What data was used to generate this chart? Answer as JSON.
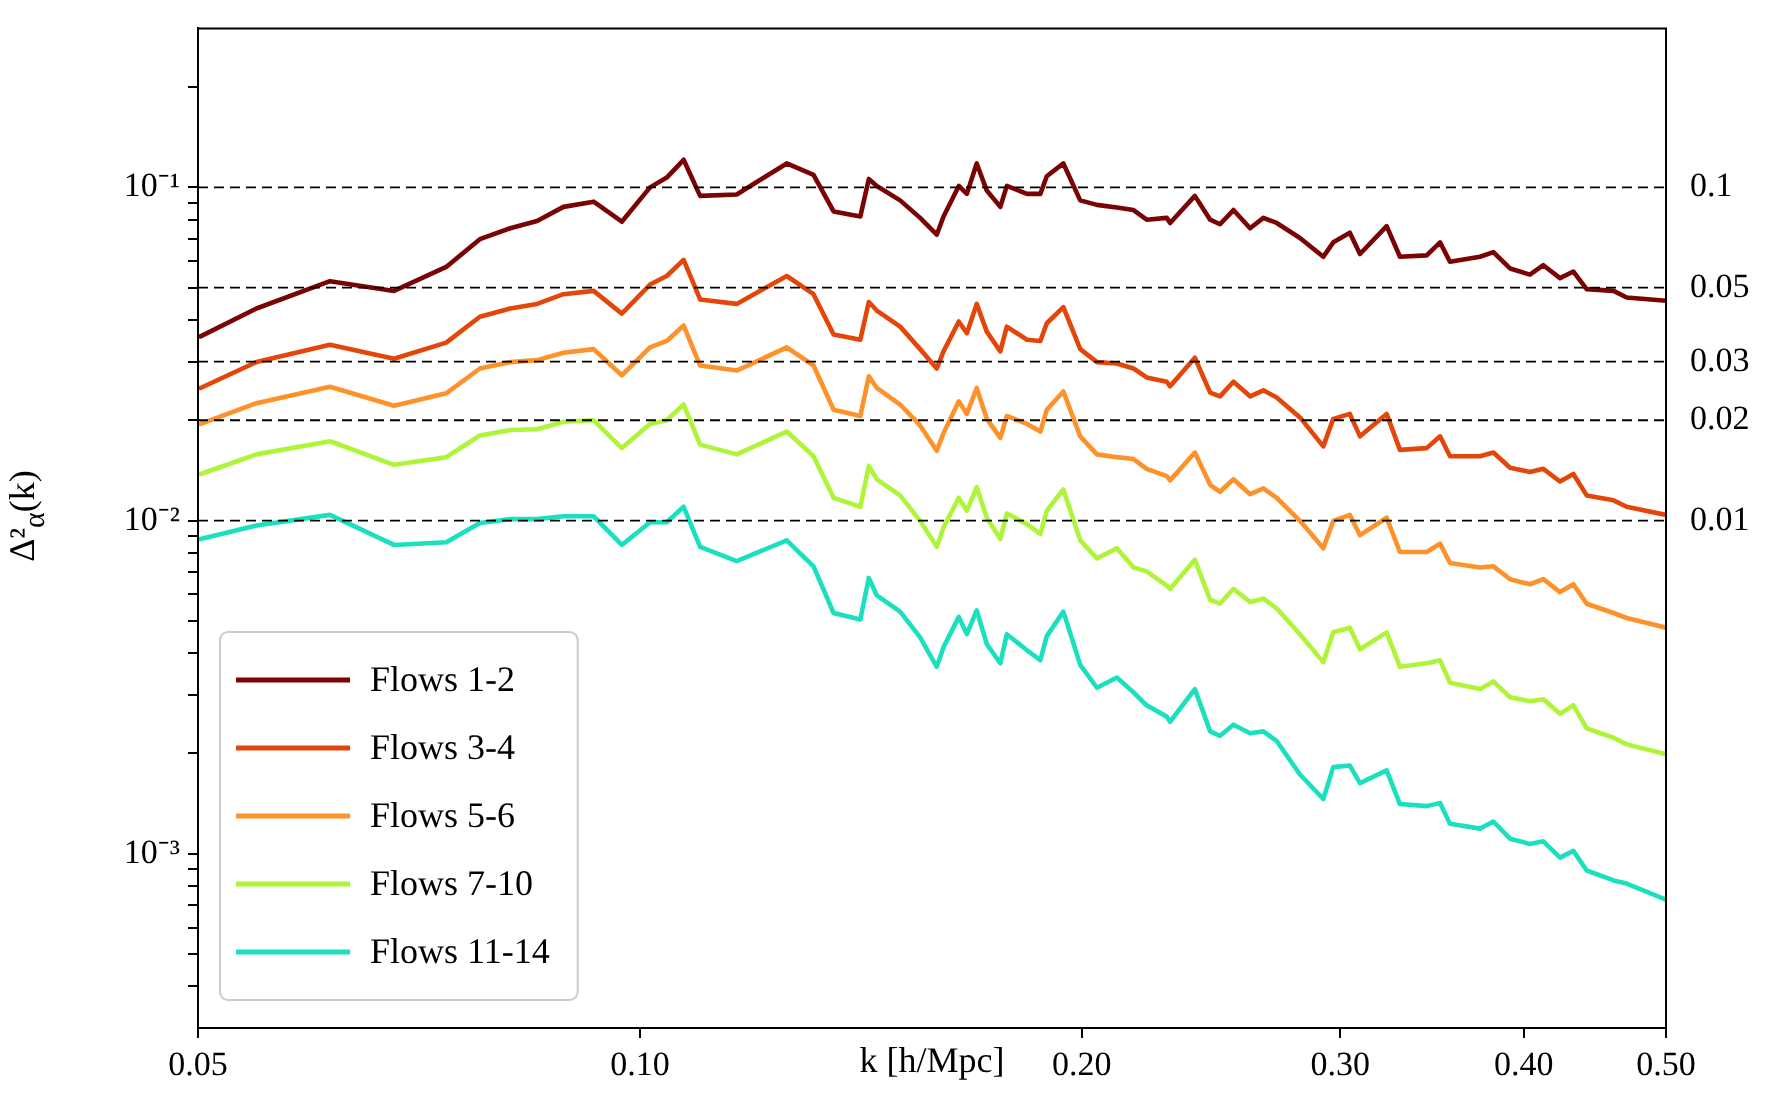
{
  "chart_data": {
    "type": "line",
    "xlabel": "k [h/Mpc]",
    "ylabel": "Δ²$_{α}$(k)",
    "log": "xy",
    "legend": "bottom left",
    "marker": "none",
    "line_style": "solid",
    "xlim": [
      0.05,
      0.5
    ],
    "xticks": [
      0.05,
      {
        "value": 0.1,
        "label": "0.10"
      },
      {
        "value": 0.2,
        "label": "0.20"
      },
      {
        "value": 0.3,
        "label": "0.30"
      },
      {
        "value": 0.4,
        "label": "0.40"
      },
      {
        "value": 0.5,
        "label": "0.50"
      }
    ],
    "ylim": [
      0.0003,
      0.3
    ],
    "yticks": [
      {
        "value": 0.0004,
        "label": null
      },
      {
        "value": 0.0005,
        "label": null
      },
      {
        "value": 0.0006,
        "label": null
      },
      {
        "value": 0.0007,
        "label": null
      },
      {
        "value": 0.0008,
        "label": null
      },
      {
        "value": 0.0009,
        "label": null
      },
      {
        "value": 0.001,
        "label": "10⁻³"
      },
      {
        "value": 0.002,
        "label": null
      },
      {
        "value": 0.003,
        "label": null
      },
      {
        "value": 0.004,
        "label": null
      },
      {
        "value": 0.005,
        "label": null
      },
      {
        "value": 0.006,
        "label": null
      },
      {
        "value": 0.007,
        "label": null
      },
      {
        "value": 0.008,
        "label": null
      },
      {
        "value": 0.009,
        "label": null
      },
      {
        "value": 0.01,
        "label": "10⁻²"
      },
      {
        "value": 0.02,
        "label": null
      },
      {
        "value": 0.03,
        "label": null
      },
      {
        "value": 0.04,
        "label": null
      },
      {
        "value": 0.05,
        "label": null
      },
      {
        "value": 0.06,
        "label": null
      },
      {
        "value": 0.07,
        "label": null
      },
      {
        "value": 0.08,
        "label": null
      },
      {
        "value": 0.09,
        "label": null
      },
      {
        "value": 0.1,
        "label": "10⁻¹"
      },
      {
        "value": 0.2,
        "label": null
      }
    ],
    "ref_lines": [
      {
        "axis": "y",
        "value": 0.1,
        "label": "0.1",
        "color": "#000000",
        "line_style": "dashed"
      },
      {
        "axis": "y",
        "value": 0.05,
        "label": "0.05",
        "color": "#000000",
        "line_style": "dashed"
      },
      {
        "axis": "y",
        "value": 0.03,
        "label": "0.03",
        "color": "#000000",
        "line_style": "dashed"
      },
      {
        "axis": "y",
        "value": 0.02,
        "label": "0.02",
        "color": "#000000",
        "line_style": "dashed"
      },
      {
        "axis": "y",
        "value": 0.01,
        "label": "0.01",
        "color": "#000000",
        "line_style": "dashed"
      }
    ],
    "x": [
      0.0502,
      0.0548,
      0.0615,
      0.068,
      0.0738,
      0.0778,
      0.0816,
      0.0851,
      0.0887,
      0.093,
      0.0972,
      0.1016,
      0.1043,
      0.1071,
      0.1099,
      0.1164,
      0.1259,
      0.1313,
      0.1355,
      0.1413,
      0.1432,
      0.145,
      0.1504,
      0.1552,
      0.1593,
      0.161,
      0.1649,
      0.167,
      0.1696,
      0.1723,
      0.176,
      0.1778,
      0.1835,
      0.1874,
      0.1893,
      0.1943,
      0.1995,
      0.2048,
      0.2113,
      0.2169,
      0.2214,
      0.2285,
      0.2297,
      0.2388,
      0.2446,
      0.2484,
      0.2537,
      0.2604,
      0.2659,
      0.2715,
      0.2816,
      0.2921,
      0.2967,
      0.3045,
      0.3094,
      0.3226,
      0.3294,
      0.3435,
      0.3508,
      0.3563,
      0.3735,
      0.3814,
      0.3915,
      0.4039,
      0.4125,
      0.4234,
      0.4324,
      0.4415,
      0.4605,
      0.4701,
      0.5
    ],
    "series": [
      {
        "name": "Flows 1-2",
        "color": "#7a0403",
        "values": [
          0.0357,
          0.0433,
          0.0523,
          0.0489,
          0.0577,
          0.0699,
          0.0754,
          0.0793,
          0.0874,
          0.0906,
          0.0789,
          0.1,
          0.107,
          0.121,
          0.0943,
          0.0952,
          0.118,
          0.109,
          0.0847,
          0.0818,
          0.106,
          0.101,
          0.0914,
          0.081,
          0.0721,
          0.0818,
          0.101,
          0.0956,
          0.118,
          0.0978,
          0.0874,
          0.101,
          0.0956,
          0.0956,
          0.108,
          0.118,
          0.0914,
          0.0886,
          0.087,
          0.0855,
          0.08,
          0.081,
          0.0782,
          0.0943,
          0.08,
          0.0775,
          0.0855,
          0.0754,
          0.081,
          0.0782,
          0.0705,
          0.0619,
          0.0684,
          0.0731,
          0.0631,
          0.0765,
          0.0619,
          0.0625,
          0.0684,
          0.0598,
          0.0619,
          0.0639,
          0.0571,
          0.0547,
          0.0584,
          0.0534,
          0.0559,
          0.0495,
          0.0489,
          0.0467,
          0.0457
        ]
      },
      {
        "name": "Flows 3-4",
        "color": "#e4460a",
        "values": [
          0.025,
          0.0299,
          0.0337,
          0.0306,
          0.0342,
          0.0409,
          0.0433,
          0.0447,
          0.0478,
          0.0489,
          0.0418,
          0.0511,
          0.0542,
          0.0606,
          0.0461,
          0.0447,
          0.0542,
          0.0478,
          0.0362,
          0.0349,
          0.0453,
          0.0427,
          0.0382,
          0.0327,
          0.0286,
          0.0322,
          0.0396,
          0.0365,
          0.0447,
          0.0369,
          0.0322,
          0.0382,
          0.0349,
          0.0346,
          0.0391,
          0.0437,
          0.0327,
          0.0299,
          0.0296,
          0.0286,
          0.0269,
          0.0261,
          0.0253,
          0.0308,
          0.0242,
          0.0236,
          0.0261,
          0.0236,
          0.0246,
          0.0234,
          0.0204,
          0.0167,
          0.0202,
          0.0209,
          0.0179,
          0.0209,
          0.0163,
          0.0165,
          0.0179,
          0.0156,
          0.0156,
          0.016,
          0.0144,
          0.014,
          0.0143,
          0.0131,
          0.0138,
          0.0119,
          0.0115,
          0.011,
          0.0104
        ]
      },
      {
        "name": "Flows 5-6",
        "color": "#fe922a",
        "values": [
          0.0195,
          0.0225,
          0.0252,
          0.0221,
          0.0241,
          0.0286,
          0.0299,
          0.0303,
          0.0319,
          0.0327,
          0.0273,
          0.0331,
          0.0346,
          0.0385,
          0.0292,
          0.0282,
          0.0331,
          0.0292,
          0.0215,
          0.0206,
          0.0271,
          0.025,
          0.0223,
          0.0193,
          0.0162,
          0.0183,
          0.0228,
          0.0209,
          0.025,
          0.0202,
          0.0177,
          0.0206,
          0.0195,
          0.0185,
          0.0215,
          0.0244,
          0.0179,
          0.0158,
          0.0155,
          0.0153,
          0.0143,
          0.0136,
          0.0132,
          0.016,
          0.0128,
          0.0122,
          0.0133,
          0.012,
          0.0125,
          0.0117,
          0.00998,
          0.00826,
          0.00998,
          0.0104,
          0.00904,
          0.0102,
          0.00805,
          0.00805,
          0.00853,
          0.00746,
          0.00723,
          0.00729,
          0.00667,
          0.00644,
          0.00667,
          0.0061,
          0.00644,
          0.00563,
          0.00528,
          0.0051,
          0.00477
        ]
      },
      {
        "name": "Flows 7-10",
        "color": "#aef539",
        "values": [
          0.0138,
          0.0158,
          0.0173,
          0.0147,
          0.0155,
          0.018,
          0.0187,
          0.0188,
          0.0198,
          0.02,
          0.0165,
          0.0195,
          0.02,
          0.0223,
          0.0169,
          0.0158,
          0.0185,
          0.0156,
          0.0117,
          0.011,
          0.0146,
          0.0133,
          0.0119,
          0.00998,
          0.00834,
          0.00954,
          0.0117,
          0.0107,
          0.0126,
          0.0102,
          0.0088,
          0.0105,
          0.00976,
          0.00912,
          0.0107,
          0.0124,
          0.00872,
          0.0077,
          0.00826,
          0.00723,
          0.00704,
          0.00638,
          0.00624,
          0.00763,
          0.00578,
          0.00563,
          0.00624,
          0.0057,
          0.00583,
          0.00545,
          0.00456,
          0.00376,
          0.00462,
          0.00477,
          0.00411,
          0.00462,
          0.00364,
          0.00373,
          0.00381,
          0.00326,
          0.00312,
          0.00329,
          0.00295,
          0.00287,
          0.00291,
          0.00263,
          0.00279,
          0.00238,
          0.00223,
          0.00213,
          0.00199
        ]
      },
      {
        "name": "Flows 11-14",
        "color": "#1ae0c0",
        "values": [
          0.0088,
          0.00967,
          0.0104,
          0.00845,
          0.00861,
          0.00984,
          0.0101,
          0.0101,
          0.0103,
          0.0103,
          0.00845,
          0.00989,
          0.00989,
          0.011,
          0.00834,
          0.00756,
          0.00872,
          0.00729,
          0.00528,
          0.00505,
          0.00673,
          0.00596,
          0.00533,
          0.00446,
          0.00364,
          0.00417,
          0.00514,
          0.00456,
          0.00538,
          0.00426,
          0.00373,
          0.00456,
          0.00408,
          0.00381,
          0.0045,
          0.00533,
          0.00369,
          0.00315,
          0.00338,
          0.00305,
          0.00279,
          0.00258,
          0.00249,
          0.00312,
          0.00233,
          0.00226,
          0.00244,
          0.0023,
          0.00233,
          0.00218,
          0.00173,
          0.00146,
          0.00182,
          0.00184,
          0.00163,
          0.00178,
          0.00141,
          0.00139,
          0.00142,
          0.00123,
          0.00119,
          0.00125,
          0.00111,
          0.00107,
          0.00109,
          0.000974,
          0.00102,
          0.000891,
          0.000832,
          0.000814,
          0.000728
        ]
      }
    ]
  }
}
